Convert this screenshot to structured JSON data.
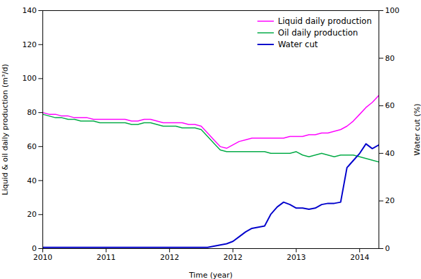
{
  "chart_data": {
    "type": "line",
    "xlabel": "Time (year)",
    "ylabel": "Liquid & oil daily production (m³/d)",
    "y2label": "Water cut (%)",
    "x": [
      2010.0,
      2010.083,
      2010.167,
      2010.25,
      2010.333,
      2010.417,
      2010.5,
      2010.583,
      2010.667,
      2010.75,
      2010.833,
      2010.917,
      2011.0,
      2011.083,
      2011.167,
      2011.25,
      2011.333,
      2011.417,
      2011.5,
      2011.583,
      2011.667,
      2011.75,
      2011.833,
      2011.917,
      2012.0,
      2012.083,
      2012.167,
      2012.25,
      2012.333,
      2012.417,
      2012.5,
      2012.583,
      2012.667,
      2012.75,
      2012.833,
      2012.917,
      2013.0,
      2013.083,
      2013.167,
      2013.25,
      2013.333,
      2013.417,
      2013.5,
      2013.583,
      2013.667,
      2013.75,
      2013.833,
      2013.917,
      2014.0,
      2014.083,
      2014.167,
      2014.25,
      2014.333,
      2014.417
    ],
    "xlim": [
      2010.0,
      2014.42
    ],
    "xticks": [
      2010,
      {
        "value": 2010.833,
        "label": "2011"
      },
      {
        "value": 2011.667,
        "label": "2012"
      },
      {
        "value": 2012.5,
        "label": "2012"
      },
      {
        "value": 2013.333,
        "label": "2013"
      },
      {
        "value": 2014.167,
        "label": "2014"
      }
    ],
    "ylim": [
      0,
      140
    ],
    "yticks": [
      0,
      20,
      40,
      60,
      80,
      100,
      120,
      140
    ],
    "y2lim": [
      0,
      100
    ],
    "y2ticks": [
      0,
      20,
      40,
      60,
      80,
      100
    ],
    "series": [
      {
        "name": "Liquid daily production",
        "color": "#ff00ff",
        "values": [
          80,
          79,
          79,
          78,
          78,
          77,
          77,
          77,
          76,
          76,
          76,
          76,
          76,
          76,
          75,
          75,
          76,
          76,
          75,
          74,
          74,
          74,
          74,
          73,
          73,
          72,
          68,
          64,
          60,
          59,
          61,
          63,
          64,
          65,
          65,
          65,
          65,
          65,
          65,
          66,
          66,
          66,
          67,
          67,
          68,
          68,
          69,
          70,
          72,
          75,
          79,
          83,
          86,
          90
        ]
      },
      {
        "name": "Oil daily production",
        "color": "#00aa44",
        "values": [
          79,
          78,
          77,
          77,
          76,
          76,
          75,
          75,
          75,
          74,
          74,
          74,
          74,
          74,
          73,
          73,
          74,
          74,
          73,
          72,
          72,
          72,
          71,
          71,
          71,
          70,
          66,
          62,
          58,
          57,
          57,
          57,
          57,
          57,
          57,
          57,
          56,
          56,
          56,
          56,
          57,
          55,
          54,
          55,
          56,
          55,
          54,
          55,
          55,
          55,
          54,
          53,
          52,
          51
        ]
      },
      {
        "name": "Water cut",
        "color": "#0000cc",
        "axis": "y2",
        "values": [
          0.5,
          0.5,
          0.5,
          0.5,
          0.5,
          0.5,
          0.5,
          0.5,
          0.5,
          0.5,
          0.5,
          0.5,
          0.5,
          0.5,
          0.5,
          0.5,
          0.5,
          0.5,
          0.5,
          0.5,
          0.5,
          0.5,
          0.5,
          0.5,
          0.5,
          0.5,
          0.5,
          1.0,
          1.5,
          2.0,
          3.0,
          5.0,
          7.0,
          8.5,
          9.0,
          9.5,
          14.5,
          17.5,
          19.5,
          18.5,
          17.0,
          17.0,
          16.5,
          17.0,
          18.5,
          19.0,
          19.0,
          19.5,
          34.0,
          37.0,
          40.0,
          44.0,
          42.0,
          43.5
        ]
      }
    ],
    "legend": "upper right",
    "grid": false
  }
}
